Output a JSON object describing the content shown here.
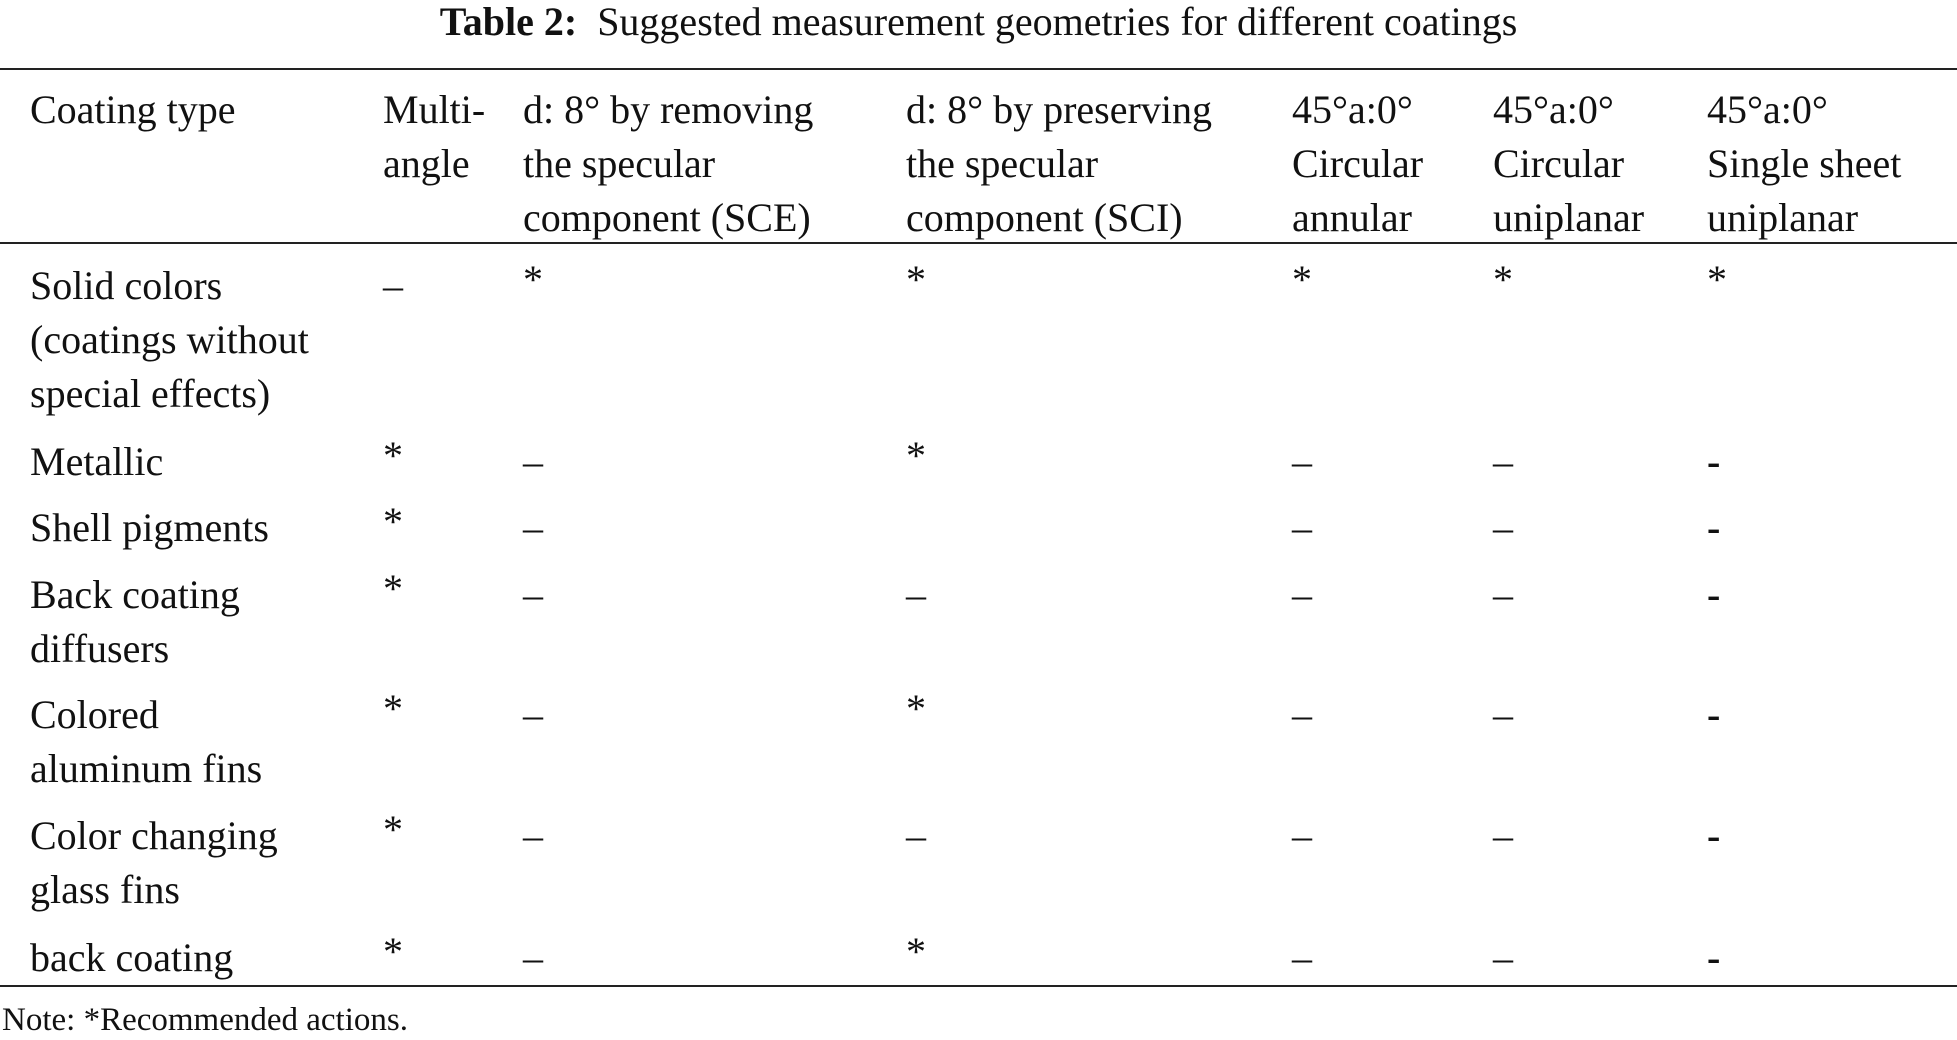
{
  "table": {
    "caption_label": "Table 2:",
    "caption": "Suggested measurement geometries for different coatings",
    "header": [
      [
        "Coating type"
      ],
      [
        "Multi-",
        "angle"
      ],
      [
        "d: 8° by removing",
        "the specular",
        "component (SCE)"
      ],
      [
        "d: 8° by preserving",
        "the specular",
        "component (SCI)"
      ],
      [
        "45°a:0°",
        "Circular",
        "annular"
      ],
      [
        "45°a:0°",
        "Circular",
        "uniplanar"
      ],
      [
        "45°a:0°",
        "Single sheet",
        "uniplanar"
      ]
    ],
    "rows": [
      [
        [
          "Solid colors",
          "(coatings without",
          "special effects)"
        ],
        "–",
        "*",
        "*",
        "*",
        "*",
        "*"
      ],
      [
        [
          "Metallic"
        ],
        "*",
        "–",
        "*",
        "–",
        "–",
        "-"
      ],
      [
        [
          "Shell pigments"
        ],
        "*",
        "–",
        null,
        "–",
        "–",
        "-"
      ],
      [
        [
          "Back coating",
          "diffusers"
        ],
        "*",
        "–",
        "–",
        "–",
        "–",
        "-"
      ],
      [
        [
          "Colored",
          "aluminum fins"
        ],
        "*",
        "–",
        "*",
        "–",
        "–",
        "-"
      ],
      [
        [
          "Color changing",
          "glass fins"
        ],
        "*",
        "–",
        "–",
        "–",
        "–",
        "-"
      ],
      [
        [
          "back coating"
        ],
        "*",
        "–",
        "*",
        "–",
        "–",
        "-"
      ]
    ],
    "note": "Note: *Recommended actions."
  }
}
